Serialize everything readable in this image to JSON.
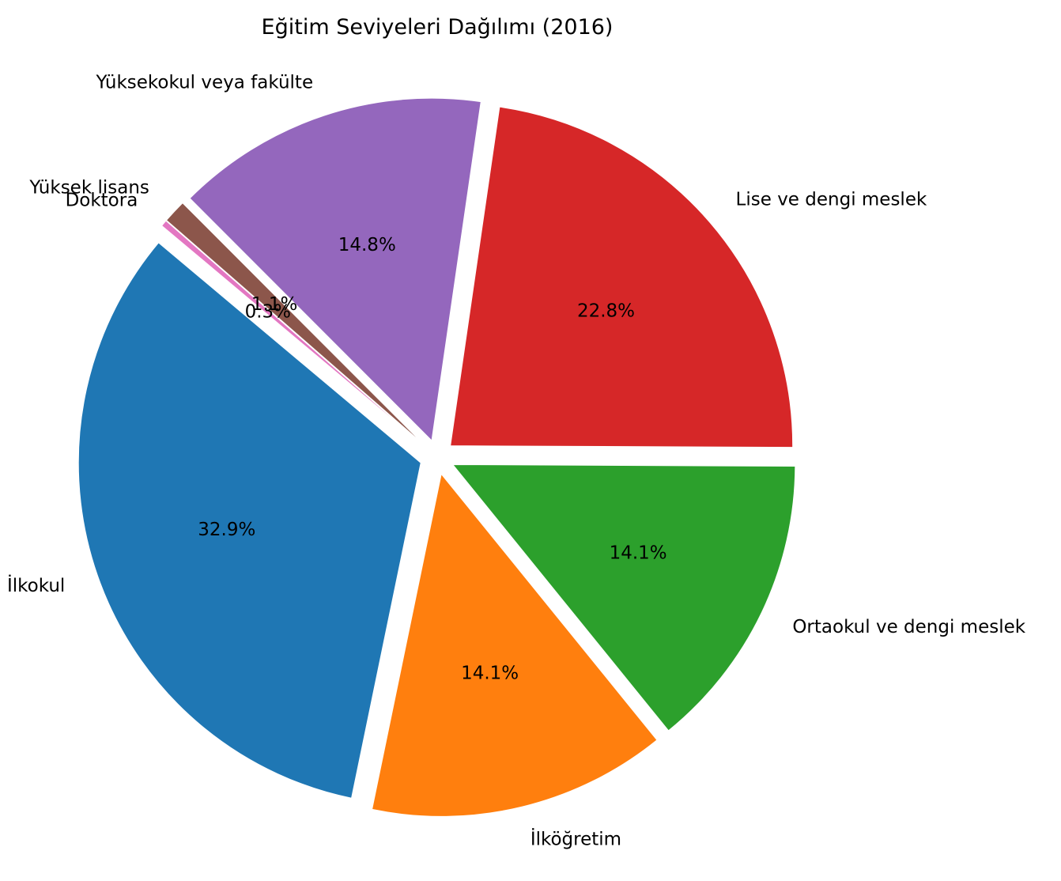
{
  "chart_data": {
    "type": "pie",
    "title": "Eğitim Seviyeleri Dağılımı (2016)",
    "start_angle_deg": 140,
    "direction": "counterclockwise",
    "exploded": true,
    "slices": [
      {
        "label": "İlkokul",
        "value": 32.9,
        "pct_label": "32.9%",
        "color": "#1f77b4"
      },
      {
        "label": "İlköğretim",
        "value": 14.1,
        "pct_label": "14.1%",
        "color": "#ff7f0e"
      },
      {
        "label": "Ortaokul ve dengi meslek",
        "value": 14.1,
        "pct_label": "14.1%",
        "color": "#2ca02c"
      },
      {
        "label": "Lise ve dengi meslek",
        "value": 22.8,
        "pct_label": "22.8%",
        "color": "#d62728"
      },
      {
        "label": "Yüksekokul veya fakülte",
        "value": 14.8,
        "pct_label": "14.8%",
        "color": "#9467bd"
      },
      {
        "label": "Yüksek lisans",
        "value": 1.1,
        "pct_label": "1.1%",
        "color": "#8c564b"
      },
      {
        "label": "Doktora",
        "value": 0.3,
        "pct_label": "0.3%",
        "color": "#e377c2"
      }
    ]
  }
}
